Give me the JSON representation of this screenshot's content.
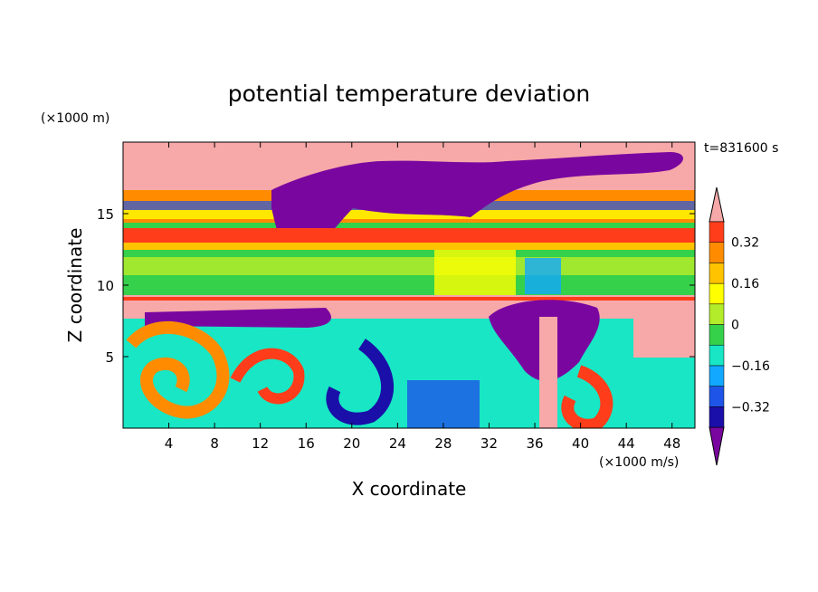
{
  "chart_data": {
    "type": "heatmap",
    "title": "potential temperature deviation",
    "xlabel": "X coordinate",
    "ylabel": "Z coordinate",
    "x_unit": "(×1000 m/s)",
    "y_unit": "(×1000 m)",
    "time_label": "t=831600 s",
    "xlim": [
      0,
      50
    ],
    "ylim": [
      0,
      20
    ],
    "x_ticks": [
      4,
      8,
      12,
      16,
      20,
      24,
      28,
      32,
      36,
      40,
      44,
      48
    ],
    "y_ticks": [
      5,
      10,
      15
    ],
    "colorbar": {
      "levels": [
        -0.4,
        -0.32,
        -0.24,
        -0.16,
        -0.08,
        0,
        0.08,
        0.16,
        0.24,
        0.32,
        0.4
      ],
      "tick_labels": [
        "0.32",
        "0.16",
        "0",
        "−0.16",
        "−0.32"
      ],
      "tick_values": [
        0.32,
        0.16,
        0,
        -0.16,
        -0.32
      ],
      "colors": [
        "#7a06a0",
        "#1a0fa8",
        "#1e55e8",
        "#12a8ff",
        "#18e6c4",
        "#35d14a",
        "#b2ec2a",
        "#ffff00",
        "#ffc300",
        "#ff8c00",
        "#ff3d1a",
        "#f7a8a8"
      ],
      "extend": "both"
    },
    "regions": [
      {
        "layer": "z 17.5-20",
        "value": "pink (>0.4)"
      },
      {
        "layer": "z 15-17.5, x 10-38",
        "value": "purple (<-0.4)"
      },
      {
        "layer": "z 13-14",
        "value": "red (0.32-0.4)"
      },
      {
        "layer": "z 9-12.5",
        "value": "green (0 to 0.08)"
      },
      {
        "layer": "z 8-9",
        "value": "pink (>0.4)"
      },
      {
        "layer": "z 0-8",
        "value": "mixed eddies -0.4 to 0.4"
      }
    ]
  }
}
